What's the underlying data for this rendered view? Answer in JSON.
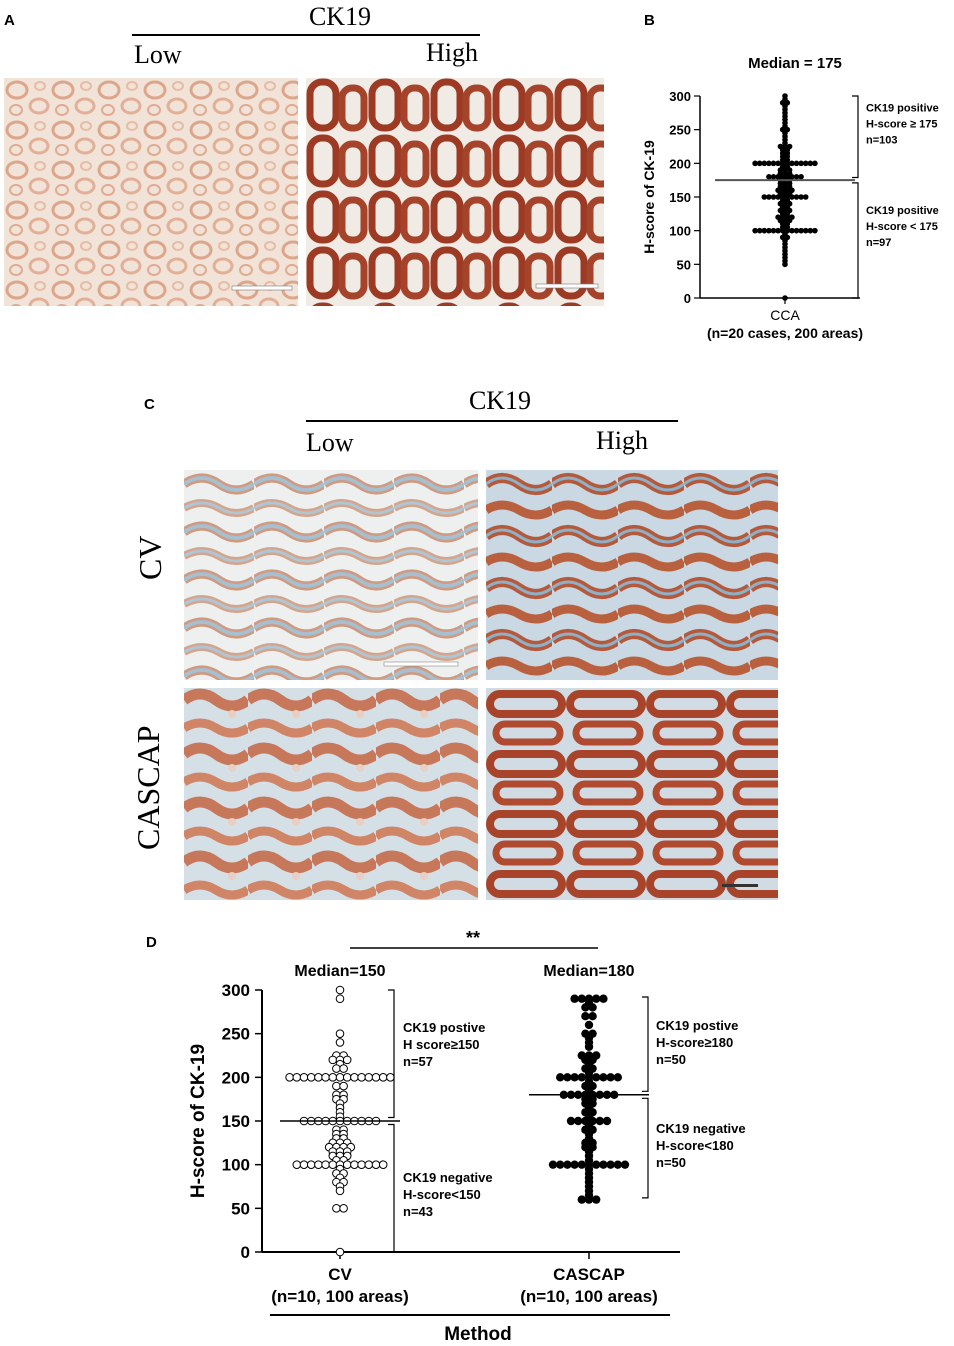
{
  "panels": {
    "a": "A",
    "b": "B",
    "c": "C",
    "d": "D"
  },
  "panel_a": {
    "marker": "CK19",
    "low": "Low",
    "high": "High"
  },
  "panel_c": {
    "marker": "CK19",
    "low": "Low",
    "high": "High",
    "row1": "CV",
    "row2": "CASCAP"
  },
  "colors": {
    "stain_low": "#e6b9a2",
    "stain_high": "#a03a25",
    "hematoxylin": "#a9c3d4",
    "background": "#f4ede8"
  },
  "chart_data": [
    {
      "type": "scatter",
      "panel": "B",
      "title": "Median = 175",
      "ylabel": "H-score of CK-19",
      "ylim": [
        0,
        300
      ],
      "yticks": [
        0,
        50,
        100,
        150,
        200,
        250,
        300
      ],
      "categories": [
        "CCA"
      ],
      "category_subtitle": "(n=20 cases, 200 areas)",
      "median": 175,
      "series": [
        {
          "category": "CCA",
          "values": [
            300,
            295,
            290,
            290,
            285,
            280,
            275,
            270,
            265,
            260,
            255,
            250,
            250,
            245,
            240,
            235,
            230,
            225,
            225,
            225,
            220,
            220,
            215,
            215,
            210,
            210,
            205,
            205,
            200,
            200,
            200,
            200,
            200,
            200,
            200,
            200,
            200,
            200,
            200,
            200,
            200,
            200,
            195,
            195,
            190,
            190,
            190,
            185,
            185,
            185,
            180,
            180,
            180,
            180,
            180,
            180,
            180,
            180,
            175,
            175,
            175,
            170,
            170,
            170,
            165,
            165,
            165,
            160,
            160,
            160,
            160,
            155,
            155,
            155,
            150,
            150,
            150,
            150,
            150,
            150,
            150,
            150,
            150,
            150,
            145,
            145,
            140,
            140,
            140,
            135,
            135,
            130,
            130,
            130,
            125,
            125,
            120,
            120,
            120,
            120,
            115,
            115,
            115,
            110,
            110,
            105,
            105,
            100,
            100,
            100,
            100,
            100,
            100,
            100,
            100,
            100,
            100,
            100,
            100,
            100,
            100,
            95,
            90,
            90,
            85,
            80,
            75,
            70,
            65,
            60,
            55,
            50,
            0
          ]
        }
      ],
      "annotations": [
        {
          "lines": [
            "CK19 positive",
            "H-score ≥ 175",
            "n=103"
          ]
        },
        {
          "lines": [
            "CK19 positive",
            "H-score < 175",
            "n=97"
          ]
        }
      ]
    },
    {
      "type": "scatter",
      "panel": "D",
      "ylabel": "H-score of CK-19",
      "xlabel": "Method",
      "ylim": [
        0,
        300
      ],
      "yticks": [
        0,
        50,
        100,
        150,
        200,
        250,
        300
      ],
      "significance": "**",
      "categories": [
        "CV",
        "CASCAP"
      ],
      "category_subtitles": [
        "(n=10, 100 areas)",
        "(n=10, 100 areas)"
      ],
      "medians": [
        150,
        180
      ],
      "median_labels": [
        "Median=150",
        "Median=180"
      ],
      "series": [
        {
          "category": "CV",
          "marker": "open",
          "values": [
            300,
            290,
            250,
            240,
            225,
            225,
            220,
            220,
            220,
            215,
            210,
            210,
            200,
            200,
            200,
            200,
            200,
            200,
            200,
            200,
            200,
            200,
            200,
            200,
            200,
            200,
            200,
            190,
            190,
            180,
            180,
            175,
            175,
            170,
            165,
            160,
            155,
            150,
            150,
            150,
            150,
            150,
            150,
            150,
            150,
            150,
            150,
            150,
            140,
            140,
            135,
            135,
            130,
            130,
            125,
            125,
            125,
            120,
            120,
            120,
            120,
            115,
            115,
            115,
            110,
            110,
            110,
            105,
            105,
            100,
            100,
            100,
            100,
            100,
            100,
            100,
            100,
            100,
            100,
            100,
            100,
            100,
            95,
            90,
            90,
            85,
            80,
            80,
            75,
            70,
            50,
            50,
            0
          ]
        },
        {
          "category": "CASCAP",
          "marker": "filled",
          "values": [
            290,
            290,
            290,
            290,
            290,
            285,
            280,
            280,
            270,
            270,
            260,
            250,
            250,
            245,
            240,
            235,
            225,
            225,
            225,
            220,
            220,
            215,
            210,
            210,
            205,
            200,
            200,
            200,
            200,
            200,
            200,
            200,
            200,
            200,
            195,
            190,
            190,
            185,
            180,
            180,
            180,
            180,
            180,
            180,
            180,
            180,
            175,
            175,
            170,
            170,
            165,
            160,
            160,
            155,
            150,
            150,
            150,
            150,
            150,
            150,
            145,
            140,
            140,
            135,
            130,
            125,
            125,
            120,
            120,
            115,
            110,
            105,
            100,
            100,
            100,
            100,
            100,
            100,
            100,
            100,
            100,
            100,
            100,
            95,
            90,
            85,
            80,
            75,
            70,
            65,
            60,
            60,
            60
          ]
        }
      ],
      "annotations": [
        {
          "lines": [
            "CK19 postive",
            "H score≥150",
            "n=57"
          ]
        },
        {
          "lines": [
            "CK19 negative",
            "H-score<150",
            "n=43"
          ]
        },
        {
          "lines": [
            "CK19 postive",
            "H-score≥180",
            "n=50"
          ]
        },
        {
          "lines": [
            "CK19 negative",
            "H-score<180",
            "n=50"
          ]
        }
      ]
    }
  ]
}
